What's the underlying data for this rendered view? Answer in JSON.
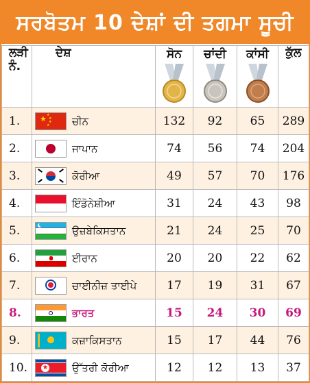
{
  "title": "ਸਰਬੋਤਮ 10 ਦੇਸ਼ਾਂ ਦੀ ਤਗਮਾ ਸੂਚੀ",
  "headers": {
    "rank_line1": "ਲੜੀ",
    "rank_line2": "ਨੰ.",
    "country": "ਦੇਸ਼",
    "gold": "ਸੋਨ",
    "silver": "ਚਾਂਦੀ",
    "bronze": "ਕਾਂਸੀ",
    "total": "ਕੁੱਲ"
  },
  "colors": {
    "accent": "#f0882a",
    "highlight": "#c6197c",
    "row_alt": "#fef1e2"
  },
  "rows": [
    {
      "rank": "1.",
      "country": "ਚੀਨ",
      "flag": "china-flag",
      "gold": "132",
      "silver": "92",
      "bronze": "65",
      "total": "289"
    },
    {
      "rank": "2.",
      "country": "ਜਾਪਾਨ",
      "flag": "japan-flag",
      "gold": "74",
      "silver": "56",
      "bronze": "74",
      "total": "204"
    },
    {
      "rank": "3.",
      "country": "ਕੋਰੀਆ",
      "flag": "south-korea-flag",
      "gold": "49",
      "silver": "57",
      "bronze": "70",
      "total": "176"
    },
    {
      "rank": "4.",
      "country": "ਇੰਡੋਨੇਸ਼ੀਆ",
      "flag": "indonesia-flag",
      "gold": "31",
      "silver": "24",
      "bronze": "43",
      "total": "98"
    },
    {
      "rank": "5.",
      "country": "ਉਜ਼ਬੇਕਿਸਤਾਨ",
      "flag": "uzbekistan-flag",
      "gold": "21",
      "silver": "24",
      "bronze": "25",
      "total": "70"
    },
    {
      "rank": "6.",
      "country": "ਈਰਾਨ",
      "flag": "iran-flag",
      "gold": "20",
      "silver": "20",
      "bronze": "22",
      "total": "62"
    },
    {
      "rank": "7.",
      "country": "ਚਾਈਨੀਜ਼ ਤਾਈਪੇ",
      "flag": "chinese-taipei-flag",
      "gold": "17",
      "silver": "19",
      "bronze": "31",
      "total": "67"
    },
    {
      "rank": "8.",
      "country": "ਭਾਰਤ",
      "flag": "india-flag",
      "gold": "15",
      "silver": "24",
      "bronze": "30",
      "total": "69"
    },
    {
      "rank": "9.",
      "country": "ਕਜ਼ਾਕਿਸਤਾਨ",
      "flag": "kazakhstan-flag",
      "gold": "15",
      "silver": "17",
      "bronze": "44",
      "total": "76"
    },
    {
      "rank": "10.",
      "country": "ਉੱਤਰੀ ਕੋਰੀਆ",
      "flag": "north-korea-flag",
      "gold": "12",
      "silver": "12",
      "bronze": "13",
      "total": "37"
    }
  ]
}
